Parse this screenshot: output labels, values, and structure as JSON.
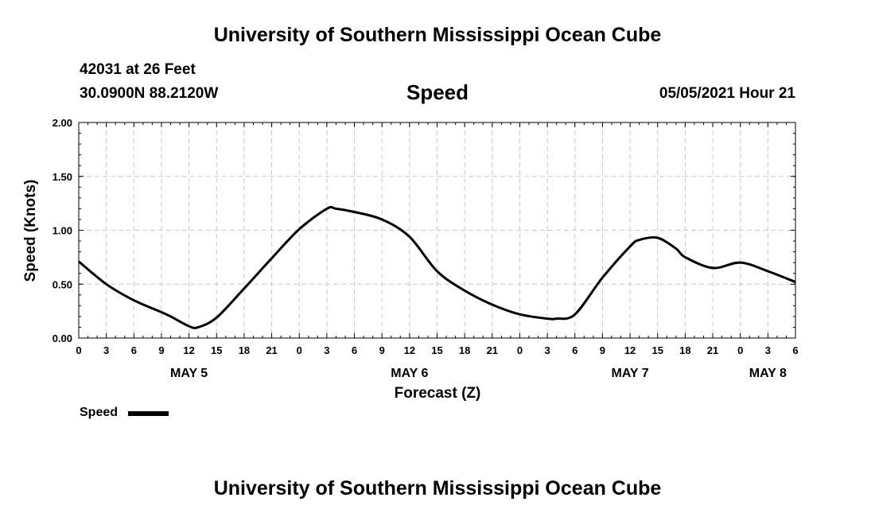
{
  "header": {
    "title_top": "University of Southern Mississippi Ocean Cube",
    "title_bottom": "University of Southern Mississippi Ocean Cube",
    "station": "42031 at 26 Feet",
    "location": "30.0900N  88.2120W",
    "variable": "Speed",
    "timestamp": "05/05/2021 Hour 21"
  },
  "legend": {
    "label": "Speed",
    "color": "#000000"
  },
  "chart_data": {
    "type": "line",
    "xlabel": "Forecast (Z)",
    "ylabel": "Speed (Knots)",
    "ylim": [
      0,
      2
    ],
    "xlim": [
      0,
      78
    ],
    "y_ticks": [
      "0.00",
      "0.50",
      "1.00",
      "1.50",
      "2.00"
    ],
    "y_tick_values": [
      0,
      0.5,
      1.0,
      1.5,
      2.0
    ],
    "x_tick_labels": [
      "0",
      "3",
      "6",
      "9",
      "12",
      "15",
      "18",
      "21",
      "0",
      "3",
      "6",
      "9",
      "12",
      "15",
      "18",
      "21",
      "0",
      "3",
      "6",
      "9",
      "12",
      "15",
      "18",
      "21",
      "0",
      "3",
      "6"
    ],
    "date_labels": [
      {
        "label": "MAY 5",
        "hour": 12
      },
      {
        "label": "MAY 6",
        "hour": 36
      },
      {
        "label": "MAY 7",
        "hour": 60
      },
      {
        "label": "MAY 8",
        "hour": 75
      }
    ],
    "grid": true,
    "series": [
      {
        "name": "Speed",
        "x": [
          0,
          3,
          6,
          9,
          10,
          12,
          13,
          15,
          18,
          21,
          24,
          27,
          28,
          30,
          33,
          36,
          39,
          42,
          45,
          48,
          51,
          52,
          54,
          57,
          60,
          61,
          63,
          65,
          66,
          69,
          72,
          75,
          78
        ],
        "y": [
          0.71,
          0.5,
          0.35,
          0.24,
          0.2,
          0.11,
          0.1,
          0.19,
          0.46,
          0.74,
          1.01,
          1.2,
          1.2,
          1.17,
          1.1,
          0.94,
          0.62,
          0.44,
          0.31,
          0.22,
          0.18,
          0.18,
          0.22,
          0.56,
          0.85,
          0.91,
          0.93,
          0.83,
          0.75,
          0.65,
          0.7,
          0.62,
          0.52
        ]
      }
    ]
  }
}
